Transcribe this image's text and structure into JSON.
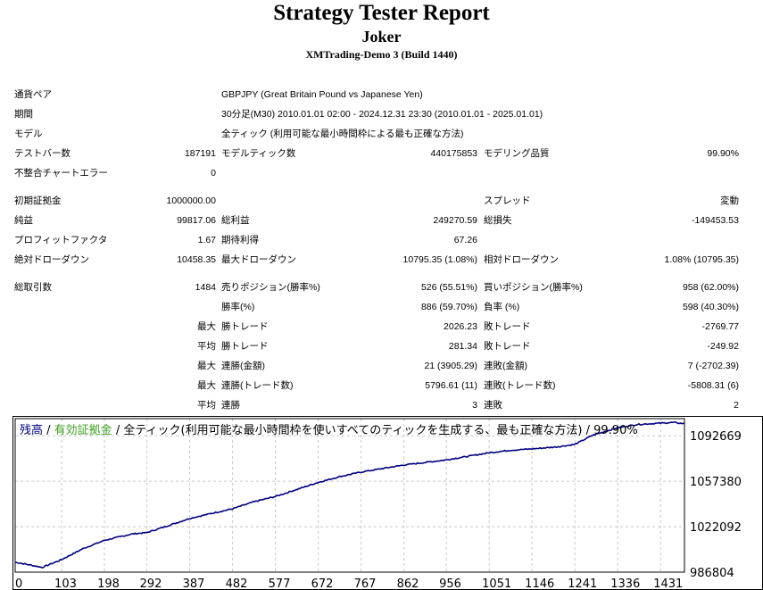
{
  "header": {
    "title": "Strategy Tester Report",
    "ea_name": "Joker",
    "server": "XMTrading-Demo 3 (Build 1440)"
  },
  "info": {
    "symbol_label": "通貨ペア",
    "symbol_value": "GBPJPY (Great Britain Pound vs Japanese Yen)",
    "period_label": "期間",
    "period_value": "30分足(M30) 2010.01.01 02:00 - 2024.12.31 23:30 (2010.01.01 - 2025.01.01)",
    "model_label": "モデル",
    "model_value": "全ティック (利用可能な最小時間枠による最も正確な方法)",
    "bars_label": "テストバー数",
    "bars_value": "187191",
    "ticks_label": "モデルティック数",
    "ticks_value": "440175853",
    "quality_label": "モデリング品質",
    "quality_value": "99.90%",
    "errors_label": "不整合チャートエラー",
    "errors_value": "0"
  },
  "stats": {
    "deposit_label": "初期証拠金",
    "deposit_value": "1000000.00",
    "spread_label": "スプレッド",
    "spread_value": "変動",
    "net_label": "純益",
    "net_value": "99817.06",
    "gross_profit_label": "総利益",
    "gross_profit_value": "249270.59",
    "gross_loss_label": "総損失",
    "gross_loss_value": "-149453.53",
    "pf_label": "プロフィットファクタ",
    "pf_value": "1.67",
    "expected_label": "期待利得",
    "expected_value": "67.26",
    "abs_dd_label": "絶対ドローダウン",
    "abs_dd_value": "10458.35",
    "max_dd_label": "最大ドローダウン",
    "max_dd_value": "10795.35 (1.08%)",
    "rel_dd_label": "相対ドローダウン",
    "rel_dd_value": "1.08% (10795.35)",
    "total_label": "総取引数",
    "total_value": "1484",
    "short_label": "売りポジション(勝率%)",
    "short_value": "526 (55.51%)",
    "long_label": "買いポジション(勝率%)",
    "long_value": "958 (62.00%)",
    "win_label": "勝率(%)",
    "win_value": "886 (59.70%)",
    "loss_label": "負率 (%)",
    "loss_value": "598 (40.30%)",
    "max_word": "最大",
    "avg_word": "平均",
    "lw_label": "勝トレード",
    "lw_value": "2026.23",
    "ll_label": "敗トレード",
    "ll_value": "-2769.77",
    "aw_label": "勝トレード",
    "aw_value": "281.34",
    "al_label": "敗トレード",
    "al_value": "-249.92",
    "mcw_label": "連勝(金額)",
    "mcw_value": "21 (3905.29)",
    "mcl_label": "連敗(金額)",
    "mcl_value": "7 (-2702.39)",
    "mcp_label": "連勝(トレード数)",
    "mcp_value": "5796.61 (11)",
    "mcls_label": "連敗(トレード数)",
    "mcls_value": "-5808.31 (6)",
    "acw_label": "連勝",
    "acw_value": "3",
    "acl_label": "連敗",
    "acl_value": "2"
  },
  "chart_data": {
    "type": "line",
    "legend_balance": "残高",
    "legend_sep": " / ",
    "legend_equity": "有効証拠金",
    "legend_rest": " / 全ティック(利用可能な最小時間枠を使いすべてのティックを生成する、最も正確な方法) / 99.90%",
    "y_ticks": [
      1092669,
      1057380,
      1022092,
      986804
    ],
    "x_ticks": [
      0,
      103,
      198,
      292,
      387,
      482,
      577,
      672,
      767,
      862,
      956,
      1051,
      1146,
      1241,
      1336,
      1431
    ],
    "x_range": [
      0,
      1484
    ],
    "y_range": [
      986804,
      1106000
    ],
    "grid": true,
    "colors": {
      "balance": "#000080",
      "equity": "#008000",
      "grid": "#c8c8c8"
    },
    "series": [
      {
        "name": "残高",
        "points": [
          [
            0,
            994500
          ],
          [
            30,
            992600
          ],
          [
            60,
            990500
          ],
          [
            103,
            996500
          ],
          [
            150,
            1005000
          ],
          [
            198,
            1011500
          ],
          [
            260,
            1016500
          ],
          [
            292,
            1017500
          ],
          [
            340,
            1023000
          ],
          [
            387,
            1028500
          ],
          [
            430,
            1032000
          ],
          [
            482,
            1036000
          ],
          [
            530,
            1041500
          ],
          [
            577,
            1045500
          ],
          [
            620,
            1050500
          ],
          [
            672,
            1056500
          ],
          [
            720,
            1061000
          ],
          [
            767,
            1064500
          ],
          [
            810,
            1067000
          ],
          [
            862,
            1070000
          ],
          [
            910,
            1072000
          ],
          [
            956,
            1074000
          ],
          [
            1000,
            1076500
          ],
          [
            1051,
            1079500
          ],
          [
            1100,
            1081500
          ],
          [
            1146,
            1082500
          ],
          [
            1200,
            1084000
          ],
          [
            1241,
            1086000
          ],
          [
            1280,
            1093000
          ],
          [
            1336,
            1099000
          ],
          [
            1380,
            1101500
          ],
          [
            1431,
            1102500
          ],
          [
            1460,
            1103000
          ],
          [
            1484,
            1102000
          ]
        ]
      }
    ]
  }
}
